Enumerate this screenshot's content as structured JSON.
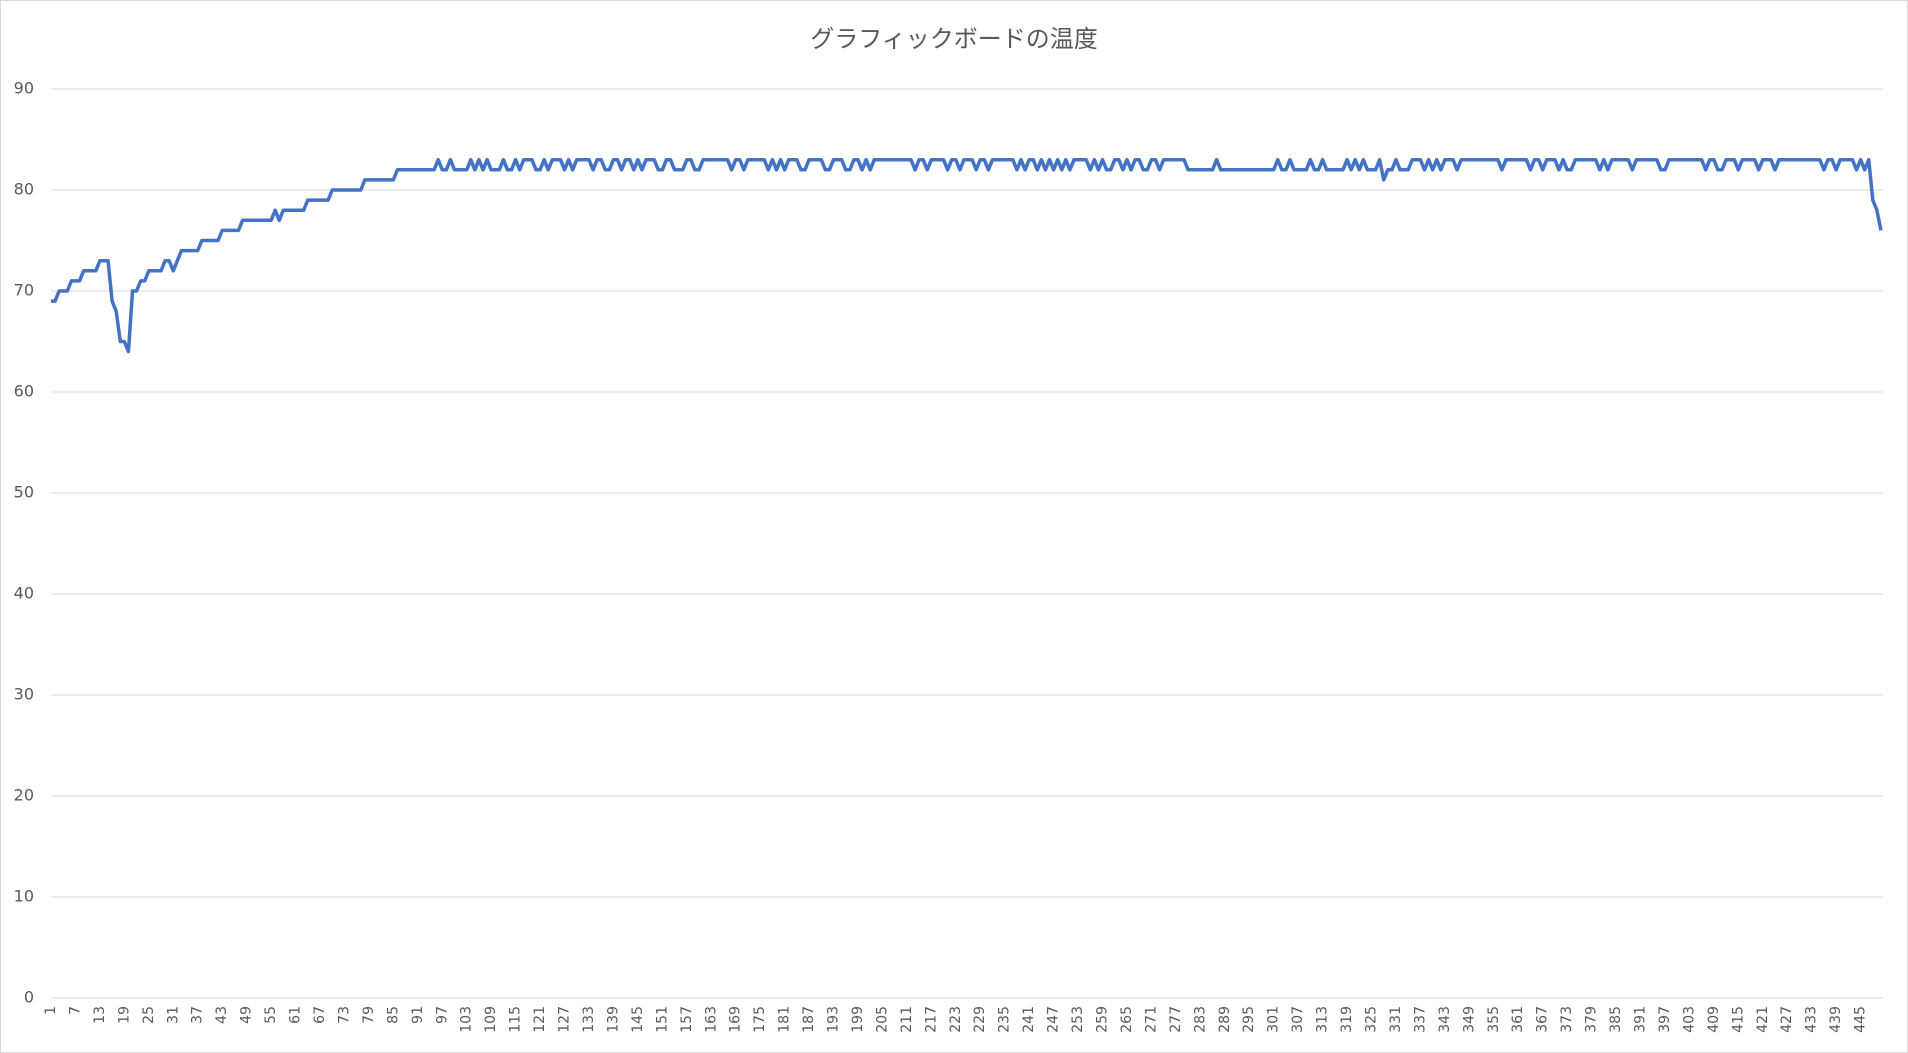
{
  "chart_data": {
    "type": "line",
    "title": "グラフィックボードの温度",
    "categories": [
      1,
      null,
      null,
      null,
      null,
      null,
      7,
      null,
      null,
      null,
      null,
      null,
      13,
      null,
      null,
      null,
      null,
      null,
      19,
      null,
      null,
      null,
      null,
      null,
      25,
      null,
      null,
      null,
      null,
      null,
      31,
      null,
      null,
      null,
      null,
      null,
      37,
      null,
      null,
      null,
      null,
      null,
      43,
      null,
      null,
      null,
      null,
      null,
      49,
      null,
      null,
      null,
      null,
      null,
      55,
      null,
      null,
      null,
      null,
      null,
      61,
      null,
      null,
      null,
      null,
      null,
      67,
      null,
      null,
      null,
      null,
      null,
      73,
      null,
      null,
      null,
      null,
      null,
      79,
      null,
      null,
      null,
      null,
      null,
      85,
      null,
      null,
      null,
      null,
      null,
      91,
      null,
      null,
      null,
      null,
      null,
      97,
      null,
      null,
      null,
      null,
      null,
      103,
      null,
      null,
      null,
      null,
      null,
      109,
      null,
      null,
      null,
      null,
      null,
      115,
      null,
      null,
      null,
      null,
      null,
      121,
      null,
      null,
      null,
      null,
      null,
      127,
      null,
      null,
      null,
      null,
      null,
      133,
      null,
      null,
      null,
      null,
      null,
      139,
      null,
      null,
      null,
      null,
      null,
      145,
      null,
      null,
      null,
      null,
      null,
      151,
      null,
      null,
      null,
      null,
      null,
      157,
      null,
      null,
      null,
      null,
      null,
      163,
      null,
      null,
      null,
      null,
      null,
      169,
      null,
      null,
      null,
      null,
      null,
      175,
      null,
      null,
      null,
      null,
      null,
      181,
      null,
      null,
      null,
      null,
      null,
      187,
      null,
      null,
      null,
      null,
      null,
      193,
      null,
      null,
      null,
      null,
      null,
      199,
      null,
      null,
      null,
      null,
      null,
      205,
      null,
      null,
      null,
      null,
      null,
      211,
      null,
      null,
      null,
      null,
      null,
      217,
      null,
      null,
      null,
      null,
      null,
      223,
      null,
      null,
      null,
      null,
      null,
      229,
      null,
      null,
      null,
      null,
      null,
      235,
      null,
      null,
      null,
      null,
      null,
      241,
      null,
      null,
      null,
      null,
      null,
      247,
      null,
      null,
      null,
      null,
      null,
      253,
      null,
      null,
      null,
      null,
      null,
      259,
      null,
      null,
      null,
      null,
      null,
      265,
      null,
      null,
      null,
      null,
      null,
      271,
      null,
      null,
      null,
      null,
      null,
      277,
      null,
      null,
      null,
      null,
      null,
      283,
      null,
      null,
      null,
      null,
      null,
      289,
      null,
      null,
      null,
      null,
      null,
      295,
      null,
      null,
      null,
      null,
      null,
      301,
      null,
      null,
      null,
      null,
      null,
      307,
      null,
      null,
      null,
      null,
      null,
      313,
      null,
      null,
      null,
      null,
      null,
      319,
      null,
      null,
      null,
      null,
      null,
      325,
      null,
      null,
      null,
      null,
      null,
      331,
      null,
      null,
      null,
      null,
      null,
      337,
      null,
      null,
      null,
      null,
      null,
      343,
      null,
      null,
      null,
      null,
      null,
      349,
      null,
      null,
      null,
      null,
      null,
      355,
      null,
      null,
      null,
      null,
      null,
      361,
      null,
      null,
      null,
      null,
      null,
      367,
      null,
      null,
      null,
      null,
      null,
      373,
      null,
      null,
      null,
      null,
      null,
      379,
      null,
      null,
      null,
      null,
      null,
      385,
      null,
      null,
      null,
      null,
      null,
      391,
      null,
      null,
      null,
      null,
      null,
      397,
      null,
      null,
      null,
      null,
      null,
      403,
      null,
      null,
      null,
      null,
      null,
      409,
      null,
      null,
      null,
      null,
      null,
      415,
      null,
      null,
      null,
      null,
      null,
      421,
      null,
      null,
      null,
      null,
      null,
      427,
      null,
      null,
      null,
      null,
      null,
      433,
      null,
      null,
      null,
      null,
      null,
      439,
      null,
      null,
      null,
      null,
      null,
      445,
      null,
      null,
      null,
      null,
      null
    ],
    "series": [
      {
        "color": "#4472c4",
        "values": [
          69,
          69,
          70,
          70,
          70,
          71,
          71,
          71,
          72,
          72,
          72,
          72,
          73,
          73,
          73,
          69,
          68,
          65,
          65,
          64,
          70,
          70,
          71,
          71,
          72,
          72,
          72,
          72,
          73,
          73,
          72,
          73,
          74,
          74,
          74,
          74,
          74,
          75,
          75,
          75,
          75,
          75,
          76,
          76,
          76,
          76,
          76,
          77,
          77,
          77,
          77,
          77,
          77,
          77,
          77,
          78,
          77,
          78,
          78,
          78,
          78,
          78,
          78,
          79,
          79,
          79,
          79,
          79,
          79,
          80,
          80,
          80,
          80,
          80,
          80,
          80,
          80,
          81,
          81,
          81,
          81,
          81,
          81,
          81,
          81,
          82,
          82,
          82,
          82,
          82,
          82,
          82,
          82,
          82,
          82,
          83,
          82,
          82,
          83,
          82,
          82,
          82,
          82,
          83,
          82,
          83,
          82,
          83,
          82,
          82,
          82,
          83,
          82,
          82,
          83,
          82,
          83,
          83,
          83,
          82,
          82,
          83,
          82,
          83,
          83,
          83,
          82,
          83,
          82,
          83,
          83,
          83,
          83,
          82,
          83,
          83,
          82,
          82,
          83,
          83,
          82,
          83,
          83,
          82,
          83,
          82,
          83,
          83,
          83,
          82,
          82,
          83,
          83,
          82,
          82,
          82,
          83,
          83,
          82,
          82,
          83,
          83,
          83,
          83,
          83,
          83,
          83,
          82,
          83,
          83,
          82,
          83,
          83,
          83,
          83,
          83,
          82,
          83,
          82,
          83,
          82,
          83,
          83,
          83,
          82,
          82,
          83,
          83,
          83,
          83,
          82,
          82,
          83,
          83,
          83,
          82,
          82,
          83,
          83,
          82,
          83,
          82,
          83,
          83,
          83,
          83,
          83,
          83,
          83,
          83,
          83,
          83,
          82,
          83,
          83,
          82,
          83,
          83,
          83,
          83,
          82,
          83,
          83,
          82,
          83,
          83,
          83,
          82,
          83,
          83,
          82,
          83,
          83,
          83,
          83,
          83,
          83,
          82,
          83,
          82,
          83,
          83,
          82,
          83,
          82,
          83,
          82,
          83,
          82,
          83,
          82,
          83,
          83,
          83,
          83,
          82,
          83,
          82,
          83,
          82,
          82,
          83,
          83,
          82,
          83,
          82,
          83,
          83,
          82,
          82,
          83,
          83,
          82,
          83,
          83,
          83,
          83,
          83,
          83,
          82,
          82,
          82,
          82,
          82,
          82,
          82,
          83,
          82,
          82,
          82,
          82,
          82,
          82,
          82,
          82,
          82,
          82,
          82,
          82,
          82,
          82,
          83,
          82,
          82,
          83,
          82,
          82,
          82,
          82,
          83,
          82,
          82,
          83,
          82,
          82,
          82,
          82,
          82,
          83,
          82,
          83,
          82,
          83,
          82,
          82,
          82,
          83,
          81,
          82,
          82,
          83,
          82,
          82,
          82,
          83,
          83,
          83,
          82,
          83,
          82,
          83,
          82,
          83,
          83,
          83,
          82,
          83,
          83,
          83,
          83,
          83,
          83,
          83,
          83,
          83,
          83,
          82,
          83,
          83,
          83,
          83,
          83,
          83,
          82,
          83,
          83,
          82,
          83,
          83,
          83,
          82,
          83,
          82,
          82,
          83,
          83,
          83,
          83,
          83,
          83,
          82,
          83,
          82,
          83,
          83,
          83,
          83,
          83,
          82,
          83,
          83,
          83,
          83,
          83,
          83,
          82,
          82,
          83,
          83,
          83,
          83,
          83,
          83,
          83,
          83,
          83,
          82,
          83,
          83,
          82,
          82,
          83,
          83,
          83,
          82,
          83,
          83,
          83,
          83,
          82,
          83,
          83,
          83,
          82,
          83,
          83,
          83,
          83,
          83,
          83,
          83,
          83,
          83,
          83,
          83,
          82,
          83,
          83,
          82,
          83,
          83,
          83,
          83,
          82,
          83,
          82,
          83,
          79,
          78,
          76
        ]
      }
    ],
    "ylim": [
      0,
      90
    ],
    "yticks": [
      0,
      10,
      20,
      30,
      40,
      50,
      60,
      70,
      80,
      90
    ],
    "grid": true
  }
}
